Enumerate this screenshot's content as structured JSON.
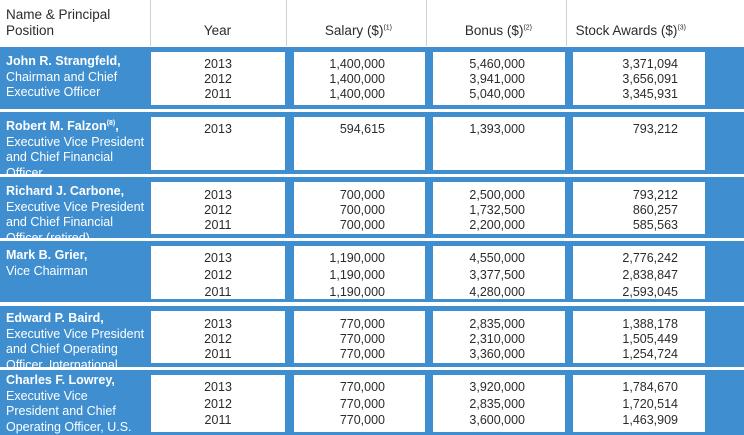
{
  "header": {
    "name_position": "Name & Principal Position",
    "year": "Year",
    "salary": "Salary ($)",
    "salary_note": "(1)",
    "bonus": "Bonus ($)",
    "bonus_note": "(2)",
    "stock": "Stock Awards ($)",
    "stock_note": "(3)"
  },
  "rows": [
    {
      "name": "John R. Strangfeld,",
      "title": "Chairman and Chief Executive Officer",
      "years": [
        "2013",
        "2012",
        "2011"
      ],
      "salary": [
        "1,400,000",
        "1,400,000",
        "1,400,000"
      ],
      "bonus": [
        "5,460,000",
        "3,941,000",
        "5,040,000"
      ],
      "stock": [
        "3,371,094",
        "3,656,091",
        "3,345,931"
      ]
    },
    {
      "name": "Robert M. Falzon",
      "name_note": "(8)",
      "name_suffix": ",",
      "title": "Executive Vice President and Chief Financial Officer",
      "years": [
        "2013"
      ],
      "salary": [
        "594,615"
      ],
      "bonus": [
        "1,393,000"
      ],
      "stock": [
        "793,212"
      ]
    },
    {
      "name": "Richard J. Carbone,",
      "title": "Executive Vice President and Chief Financial Officer (retired)",
      "years": [
        "2013",
        "2012",
        "2011"
      ],
      "salary": [
        "700,000",
        "700,000",
        "700,000"
      ],
      "bonus": [
        "2,500,000",
        "1,732,500",
        "2,200,000"
      ],
      "stock": [
        "793,212",
        "860,257",
        "585,563"
      ]
    },
    {
      "name": "Mark B. Grier,",
      "title": "Vice Chairman",
      "years": [
        "2013",
        "2012",
        "2011"
      ],
      "salary": [
        "1,190,000",
        "1,190,000",
        "1,190,000"
      ],
      "bonus": [
        "4,550,000",
        "3,377,500",
        "4,280,000"
      ],
      "stock": [
        "2,776,242",
        "2,838,847",
        "2,593,045"
      ]
    },
    {
      "name": "Edward P. Baird,",
      "title": "Executive Vice President and Chief Operating Officer, International Businesses",
      "years": [
        "2013",
        "2012",
        "2011"
      ],
      "salary": [
        "770,000",
        "770,000",
        "770,000"
      ],
      "bonus": [
        "2,835,000",
        "2,310,000",
        "3,360,000"
      ],
      "stock": [
        "1,388,178",
        "1,505,449",
        "1,254,724"
      ]
    },
    {
      "name": "Charles F. Lowrey,",
      "title": "Executive Vice President and Chief Operating Officer, U.S.",
      "years": [
        "2013",
        "2012",
        "2011"
      ],
      "salary": [
        "770,000",
        "770,000",
        "770,000"
      ],
      "bonus": [
        "3,920,000",
        "2,835,000",
        "3,600,000"
      ],
      "stock": [
        "1,784,670",
        "1,720,514",
        "1,463,909"
      ]
    }
  ]
}
